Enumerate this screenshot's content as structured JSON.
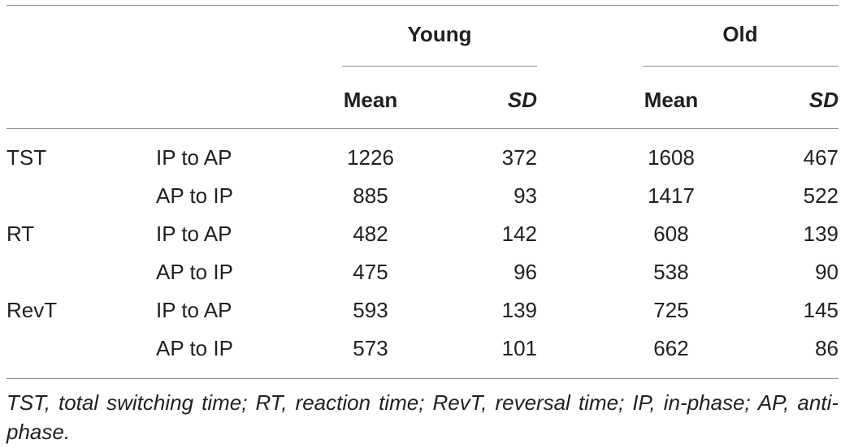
{
  "header": {
    "groups": [
      "Young",
      "Old"
    ],
    "columns": [
      "Mean",
      "SD",
      "Mean",
      "SD"
    ]
  },
  "rows": [
    {
      "measure": "TST",
      "direction": "IP to AP",
      "values": [
        "1226",
        "372",
        "1608",
        "467"
      ]
    },
    {
      "measure": "",
      "direction": "AP to IP",
      "values": [
        "885",
        "93",
        "1417",
        "522"
      ]
    },
    {
      "measure": "RT",
      "direction": "IP to AP",
      "values": [
        "482",
        "142",
        "608",
        "139"
      ]
    },
    {
      "measure": "",
      "direction": "AP to IP",
      "values": [
        "475",
        "96",
        "538",
        "90"
      ]
    },
    {
      "measure": "RevT",
      "direction": "IP to AP",
      "values": [
        "593",
        "139",
        "725",
        "145"
      ]
    },
    {
      "measure": "",
      "direction": "AP to IP",
      "values": [
        "573",
        "101",
        "662",
        "86"
      ]
    }
  ],
  "footnote": "TST, total switching time; RT, reaction time; RevT, reversal time; IP, in-phase; AP, anti-phase."
}
